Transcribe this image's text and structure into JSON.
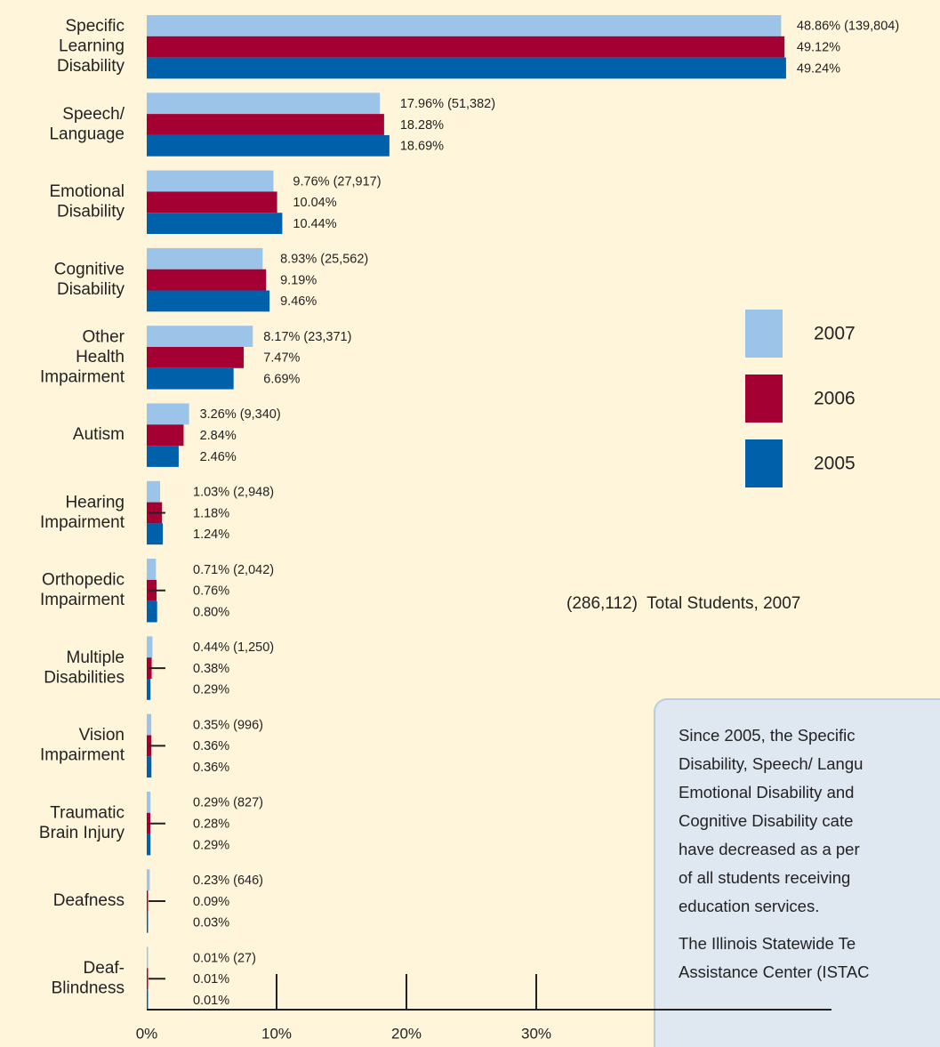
{
  "chart_data": {
    "type": "bar",
    "orientation": "horizontal",
    "categories": [
      "Specific\nLearning\nDisability",
      "Speech/\nLanguage",
      "Emotional\nDisability",
      "Cognitive\nDisability",
      "Other\nHealth\nImpairment",
      "Autism",
      "Hearing\nImpairment",
      "Orthopedic\nImpairment",
      "Multiple\nDisabilities",
      "Vision\nImpairment",
      "Traumatic\nBrain Injury",
      "Deafness",
      "Deaf-\nBlindness"
    ],
    "series": [
      {
        "name": "2007",
        "color": "#9cc3e8",
        "values": [
          48.86,
          17.96,
          9.76,
          8.93,
          8.17,
          3.26,
          1.03,
          0.71,
          0.44,
          0.35,
          0.29,
          0.23,
          0.01
        ],
        "value_labels": [
          "48.86% (139,804)",
          "17.96% (51,382)",
          "9.76% (27,917)",
          "8.93% (25,562)",
          "8.17%  (23,371)",
          "3.26% (9,340)",
          "1.03% (2,948)",
          "0.71% (2,042)",
          "0.44% (1,250)",
          "0.35% (996)",
          "0.29% (827)",
          "0.23% (646)",
          "0.01% (27)"
        ]
      },
      {
        "name": "2006",
        "color": "#a50034",
        "values": [
          49.12,
          18.28,
          10.04,
          9.19,
          7.47,
          2.84,
          1.18,
          0.76,
          0.38,
          0.36,
          0.28,
          0.09,
          0.01
        ],
        "value_labels": [
          "49.12%",
          "18.28%",
          "10.04%",
          "9.19%",
          "7.47%",
          "2.84%",
          "1.18%",
          "0.76%",
          "0.38%",
          "0.36%",
          "0.28%",
          "0.09%",
          "0.01%"
        ]
      },
      {
        "name": "2005",
        "color": "#0060aa",
        "values": [
          49.24,
          18.69,
          10.44,
          9.46,
          6.69,
          2.46,
          1.24,
          0.8,
          0.29,
          0.36,
          0.29,
          0.03,
          0.01
        ],
        "value_labels": [
          "49.24%",
          "18.69%",
          "10.44%",
          "9.46%",
          "6.69%",
          "2.46%",
          "1.24%",
          "0.80%",
          "0.29%",
          "0.36%",
          "0.29%",
          "0.03%",
          "0.01%"
        ]
      }
    ],
    "xlim": [
      0,
      50
    ],
    "xticks": [
      {
        "value": 0,
        "label": "0%"
      },
      {
        "value": 10,
        "label": "10%"
      },
      {
        "value": 20,
        "label": "20%"
      },
      {
        "value": 30,
        "label": "30%"
      }
    ],
    "legend": "right",
    "annotation": "(286,112)  Total Students, 2007"
  },
  "note_box": {
    "paragraphs": [
      [
        "Since 2005, the Specific",
        "Disability, Speech/ Langu",
        "Emotional Disability and",
        "Cognitive Disability cate",
        "have decreased as a per",
        "of all students receiving",
        "education services."
      ],
      [
        "The Illinois Statewide Te",
        "Assistance Center (ISTAC"
      ]
    ]
  }
}
